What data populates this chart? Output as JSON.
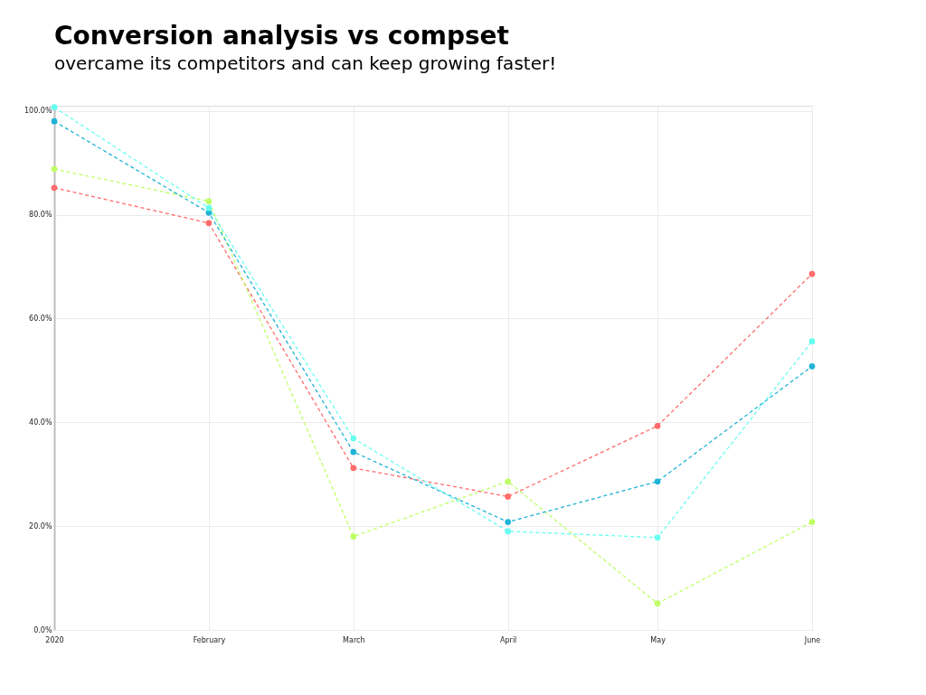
{
  "chart_data": {
    "type": "line",
    "title": "Conversion analysis vs compset",
    "subtitle": "overcame its competitors and can keep growing faster!",
    "x": [
      "2020-01",
      "2020-02",
      "2020-03",
      "2020-04",
      "2020-05",
      "2020-06"
    ],
    "xlim": [
      "2020-01",
      "2020-06"
    ],
    "xticks": [
      {
        "value": "2020-01",
        "label": "2020"
      },
      {
        "value": "2020-02",
        "label": "February"
      },
      {
        "value": "2020-03",
        "label": "March"
      },
      {
        "value": "2020-04",
        "label": "April"
      },
      {
        "value": "2020-05",
        "label": "May"
      },
      {
        "value": "2020-06",
        "label": "June"
      }
    ],
    "ylim": [
      0,
      101
    ],
    "yticks": [
      {
        "value": 0,
        "label": "0.0%"
      },
      {
        "value": 20,
        "label": "20.0%"
      },
      {
        "value": 40,
        "label": "40.0%"
      },
      {
        "value": 60,
        "label": "60.0%"
      },
      {
        "value": 80,
        "label": "80.0%"
      },
      {
        "value": 100,
        "label": "100.0%"
      }
    ],
    "grid": true,
    "marker": "circle",
    "line_style": "dashed",
    "series": [
      {
        "color": "#ff6b6b",
        "values": [
          85.2,
          78.4,
          31.2,
          25.7,
          39.3,
          68.6
        ]
      },
      {
        "color": "#bfff66",
        "values": [
          88.8,
          82.6,
          18.0,
          28.6,
          5.1,
          20.8
        ]
      },
      {
        "color": "#1fb3d6",
        "values": [
          98.0,
          80.4,
          34.3,
          20.8,
          28.6,
          50.8
        ]
      },
      {
        "color": "#66fff0",
        "values": [
          100.7,
          81.3,
          36.9,
          19.0,
          17.8,
          55.6
        ]
      }
    ]
  }
}
